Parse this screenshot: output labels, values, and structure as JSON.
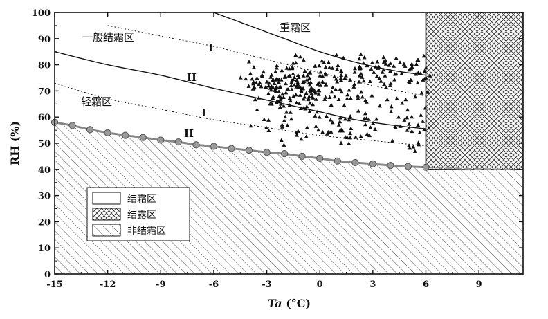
{
  "chart_data": {
    "type": "scatter",
    "xlabel_italic": "Ta",
    "xlabel_rest": " (°C)",
    "ylabel": "RH (%)",
    "xlim": [
      -15,
      11.5
    ],
    "ylim": [
      0,
      100
    ],
    "x_ticks": [
      -15,
      -12,
      -9,
      -6,
      -3,
      0,
      3,
      6,
      9
    ],
    "x_tick_labels": [
      "-15",
      "-12",
      "-9",
      "-6",
      "-3",
      "0",
      "3",
      "6",
      "9"
    ],
    "y_ticks": [
      0,
      10,
      20,
      30,
      40,
      50,
      60,
      70,
      80,
      90,
      100
    ],
    "y_tick_labels": [
      "0",
      "10",
      "20",
      "30",
      "40",
      "50",
      "60",
      "70",
      "80",
      "90",
      "100"
    ],
    "region_labels": {
      "heavy_frost": "重霜区",
      "general_frost": "一般结霜区",
      "light_frost": "轻霜区",
      "I_upper": "I",
      "II_upper": "II",
      "I_lower": "I",
      "II_lower": "II"
    },
    "legend": [
      {
        "label": "结霜区",
        "pattern": "blank"
      },
      {
        "label": "结露区",
        "pattern": "crosshatch"
      },
      {
        "label": "非结霜区",
        "pattern": "diagonal"
      }
    ],
    "dew_zone_x_start": 6,
    "frost_boundary_markers": {
      "x": [
        -15,
        -14,
        -13,
        -12,
        -11,
        -10,
        -9,
        -8,
        -7,
        -6,
        -5,
        -4,
        -3,
        -2,
        -1,
        0,
        1,
        2,
        3,
        4,
        5,
        6
      ],
      "y": [
        58,
        56.8,
        55.2,
        54,
        53,
        52.2,
        51.2,
        50.5,
        49.4,
        48.8,
        48,
        47.3,
        46.5,
        46,
        45,
        44.2,
        43.2,
        42.6,
        42.1,
        41.5,
        41.1,
        40.8
      ]
    },
    "extension_line": {
      "x": [
        6,
        8,
        11
      ],
      "y": [
        40.8,
        40.3,
        40
      ]
    },
    "curves": [
      {
        "id": "heavy-boundary",
        "style": "solid",
        "x": [
          -6,
          -4,
          -2,
          0,
          2,
          4,
          6
        ],
        "y": [
          100,
          95,
          90,
          85,
          81,
          78,
          76
        ]
      },
      {
        "id": "upper-dotted",
        "style": "dotted",
        "x": [
          -12,
          -9,
          -6,
          -3,
          0,
          3,
          6
        ],
        "y": [
          95,
          91,
          87,
          82,
          77,
          72,
          68
        ]
      },
      {
        "id": "general-boundary",
        "style": "solid",
        "x": [
          -15,
          -12,
          -9,
          -6,
          -3,
          0,
          2,
          4,
          6
        ],
        "y": [
          85,
          80,
          76,
          71,
          66.5,
          62,
          59,
          57,
          55.5
        ]
      },
      {
        "id": "lower-dotted",
        "style": "dotted",
        "x": [
          -15,
          -12,
          -9,
          -6,
          -3,
          0,
          3,
          6
        ],
        "y": [
          73,
          67,
          63,
          59,
          56,
          53,
          51,
          49
        ]
      }
    ],
    "observations": {
      "clusters": [
        {
          "cx": -2,
          "cy": 72,
          "sx": 1.4,
          "sy": 4,
          "n": 140
        },
        {
          "cx": 1.5,
          "cy": 70,
          "sx": 2.2,
          "sy": 7,
          "n": 130
        },
        {
          "cx": 3.5,
          "cy": 78,
          "sx": 1.6,
          "sy": 3,
          "n": 60
        },
        {
          "cx": 1,
          "cy": 55,
          "sx": 2.5,
          "sy": 3,
          "n": 55
        },
        {
          "cx": 5.5,
          "cy": 65,
          "sx": 0.6,
          "sy": 12,
          "n": 30
        }
      ],
      "x_range": [
        -4.5,
        6.3
      ],
      "y_range": [
        45,
        84
      ]
    }
  }
}
